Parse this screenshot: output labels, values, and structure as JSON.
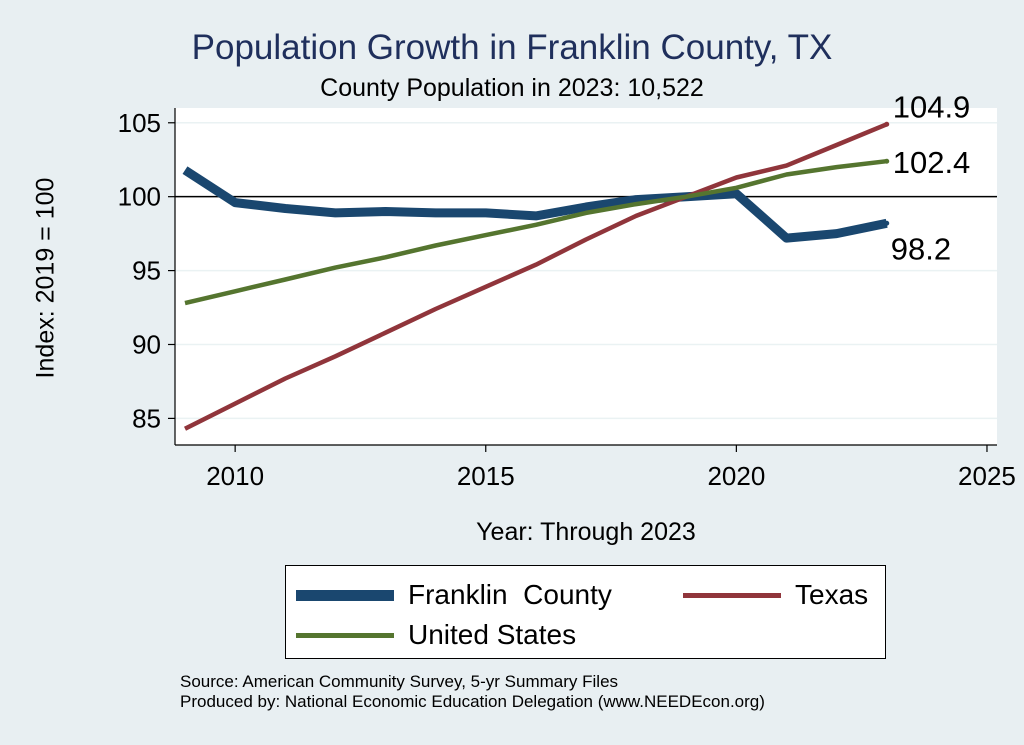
{
  "chart_data": {
    "type": "line",
    "title": "Population Growth in Franklin County, TX",
    "subtitle": "County Population in 2023: 10,522",
    "xlabel": "Year: Through 2023",
    "ylabel": "Index: 2019 = 100",
    "xlim": [
      2008.8,
      2025.2
    ],
    "ylim": [
      83.2,
      106
    ],
    "xticks": [
      2010,
      2015,
      2020,
      2025
    ],
    "yticks": [
      85,
      90,
      95,
      100,
      105
    ],
    "reference_line": 100,
    "grid": true,
    "legend_position": "bottom",
    "x": [
      2009,
      2010,
      2011,
      2012,
      2013,
      2014,
      2015,
      2016,
      2017,
      2018,
      2019,
      2020,
      2021,
      2022,
      2023
    ],
    "series": [
      {
        "name": "Franklin  County",
        "color": "#1a476f",
        "values": [
          101.8,
          99.6,
          99.2,
          98.9,
          99.0,
          98.9,
          98.9,
          98.7,
          99.3,
          99.8,
          100.0,
          100.2,
          97.2,
          97.5,
          98.2
        ],
        "end_label": "98.2"
      },
      {
        "name": "Texas",
        "color": "#90353b",
        "values": [
          84.3,
          86.0,
          87.7,
          89.2,
          90.8,
          92.4,
          93.9,
          95.4,
          97.1,
          98.7,
          100.0,
          101.3,
          102.1,
          103.5,
          104.9
        ],
        "end_label": "104.9"
      },
      {
        "name": "United States",
        "color": "#55752f",
        "values": [
          92.8,
          93.6,
          94.4,
          95.2,
          95.9,
          96.7,
          97.4,
          98.1,
          98.9,
          99.5,
          100.0,
          100.6,
          101.5,
          102.0,
          102.4
        ],
        "end_label": "102.4"
      }
    ]
  },
  "legend": {
    "franklin": "Franklin  County",
    "texas": "Texas",
    "us": "United States"
  },
  "source_lines": {
    "source": "Source: American Community Survey, 5-yr Summary Files",
    "produced": "Produced by: National Economic Education Delegation (www.NEEDEcon.org)"
  },
  "colors": {
    "franklin": "#1a476f",
    "texas": "#90353b",
    "us": "#55752f",
    "title": "#1f2f5c",
    "background": "#e8eff2"
  }
}
